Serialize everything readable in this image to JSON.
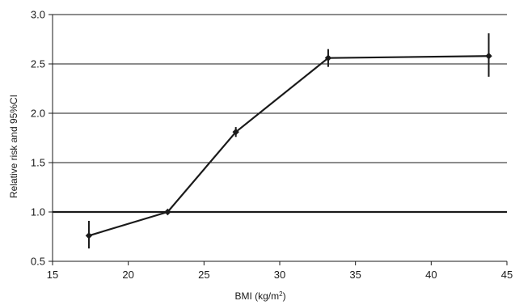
{
  "chart_data": {
    "type": "line",
    "title": "",
    "xlabel_main": "BMI (kg/m",
    "xlabel_sup": "2",
    "xlabel_end": ")",
    "ylabel": "Relative risk and 95%CI",
    "xlim": [
      15,
      45
    ],
    "ylim": [
      0.5,
      3.0
    ],
    "x_ticks": [
      "15",
      "20",
      "25",
      "30",
      "35",
      "40",
      "45"
    ],
    "y_ticks": [
      "0.5",
      "1.0",
      "1.5",
      "2.0",
      "2.5",
      "3.0"
    ],
    "grid": "horizontal",
    "reference_line": 1.0,
    "series": [
      {
        "points": [
          {
            "x": 17.4,
            "y": 0.76,
            "lo": 0.63,
            "hi": 0.91
          },
          {
            "x": 22.6,
            "y": 1.0,
            "lo": 0.99,
            "hi": 1.01
          },
          {
            "x": 27.1,
            "y": 1.81,
            "lo": 1.76,
            "hi": 1.86
          },
          {
            "x": 33.2,
            "y": 2.56,
            "lo": 2.47,
            "hi": 2.65
          },
          {
            "x": 43.8,
            "y": 2.58,
            "lo": 2.37,
            "hi": 2.81
          }
        ],
        "color": "#1a1a1a"
      }
    ]
  }
}
